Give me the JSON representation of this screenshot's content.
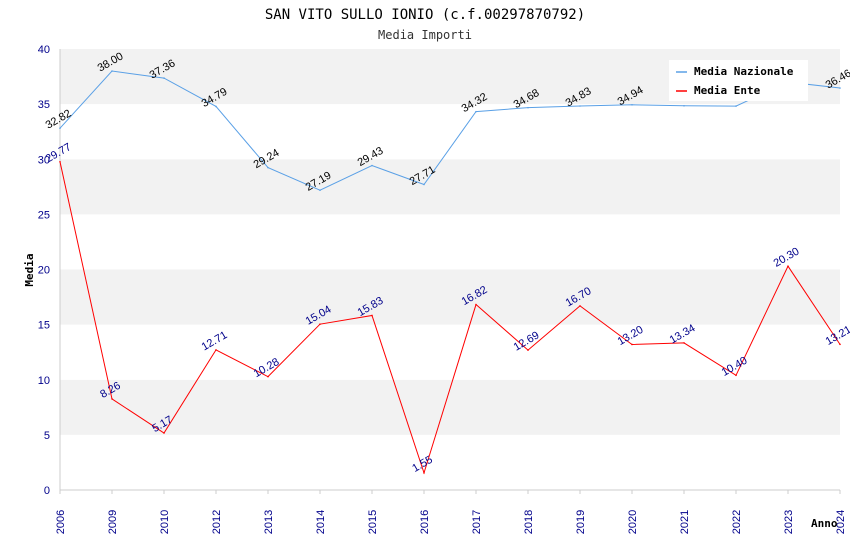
{
  "chart_data": {
    "type": "line",
    "title": "SAN VITO SULLO IONIO (c.f.00297870792)",
    "subtitle": "Media Importi",
    "xlabel": "Anno",
    "ylabel": "Media",
    "ylim": [
      0,
      40
    ],
    "yticks": [
      0,
      5,
      10,
      15,
      20,
      25,
      30,
      35,
      40
    ],
    "categories": [
      "2006",
      "2009",
      "2010",
      "2012",
      "2013",
      "2014",
      "2015",
      "2016",
      "2017",
      "2018",
      "2019",
      "2020",
      "2021",
      "2022",
      "2023",
      "2024"
    ],
    "grid": "horizontal bands",
    "legend_position": "top-right",
    "series": [
      {
        "name": "Media Nazionale",
        "color": "#5aa0e6",
        "values": [
          32.82,
          38.0,
          37.36,
          34.79,
          29.24,
          27.19,
          29.43,
          27.71,
          34.32,
          34.68,
          34.83,
          34.94,
          34.85,
          34.82,
          37.0,
          36.46
        ],
        "labels": [
          "32.82",
          "38.00",
          "37.36",
          "34.79",
          "29.24",
          "27.19",
          "29.43",
          "27.71",
          "34.32",
          "34.68",
          "34.83",
          "34.94",
          "",
          "",
          "",
          "36.46"
        ]
      },
      {
        "name": "Media Ente",
        "color": "#ff0000",
        "values": [
          29.77,
          8.26,
          5.17,
          12.71,
          10.28,
          15.04,
          15.83,
          1.55,
          16.82,
          12.69,
          16.7,
          13.2,
          13.34,
          10.4,
          20.3,
          13.21
        ],
        "labels": [
          "29.77",
          "8.26",
          "5.17",
          "12.71",
          "10.28",
          "15.04",
          "15.83",
          "1.55",
          "16.82",
          "12.69",
          "16.70",
          "13.20",
          "13.34",
          "10.40",
          "20.30",
          "13.21"
        ]
      }
    ]
  }
}
